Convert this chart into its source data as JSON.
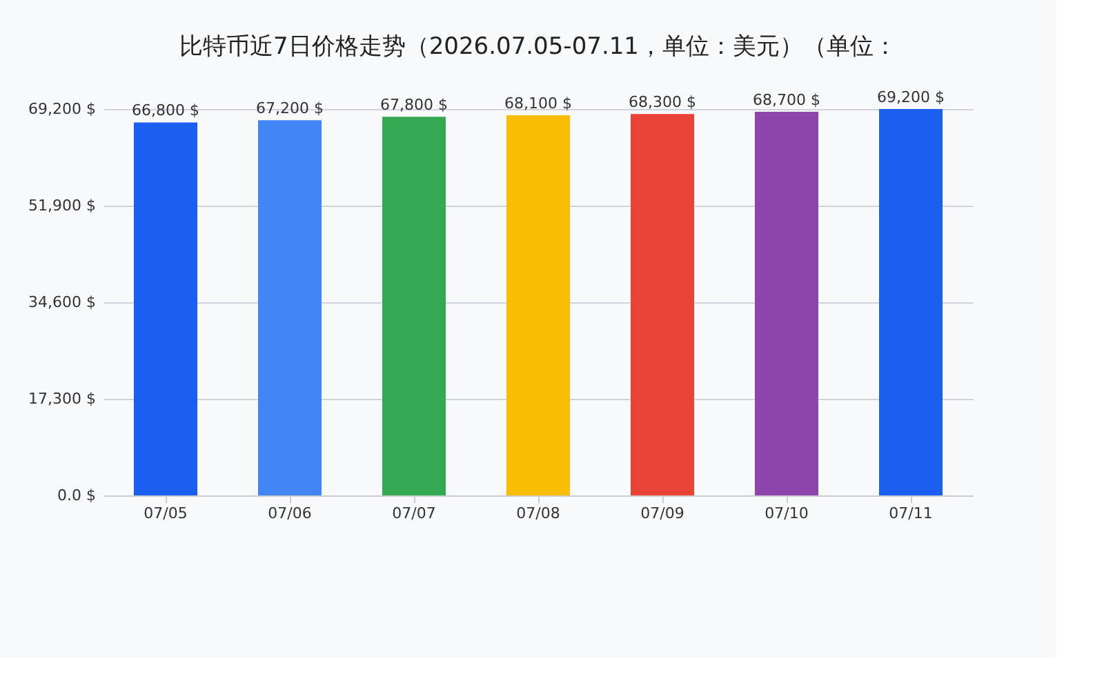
{
  "chart_data": {
    "type": "bar",
    "title": "比特币近7日价格走势（2026.07.05-07.11，单位：美元）（单位：",
    "categories": [
      "07/05",
      "07/06",
      "07/07",
      "07/08",
      "07/09",
      "07/10",
      "07/11"
    ],
    "values": [
      66800,
      67200,
      67800,
      68100,
      68300,
      68700,
      69200
    ],
    "colors": [
      "#1a5ff0",
      "#4285f4",
      "#34a853",
      "#fbbc04",
      "#ea4335",
      "#8e44ad",
      "#1a5ff0"
    ],
    "value_labels": [
      "66,800 $",
      "67,200 $",
      "67,800 $",
      "68,100 $",
      "68,300 $",
      "68,700 $",
      "69,200 $"
    ],
    "ylim": [
      0,
      69200
    ],
    "yticks": [
      {
        "value": 0,
        "label": "0.0 $"
      },
      {
        "value": 17300,
        "label": "17,300 $"
      },
      {
        "value": 34600,
        "label": "34,600 $"
      },
      {
        "value": 51900,
        "label": "51,900 $"
      },
      {
        "value": 69200,
        "label": "69,200 $"
      }
    ],
    "grid": "y"
  }
}
